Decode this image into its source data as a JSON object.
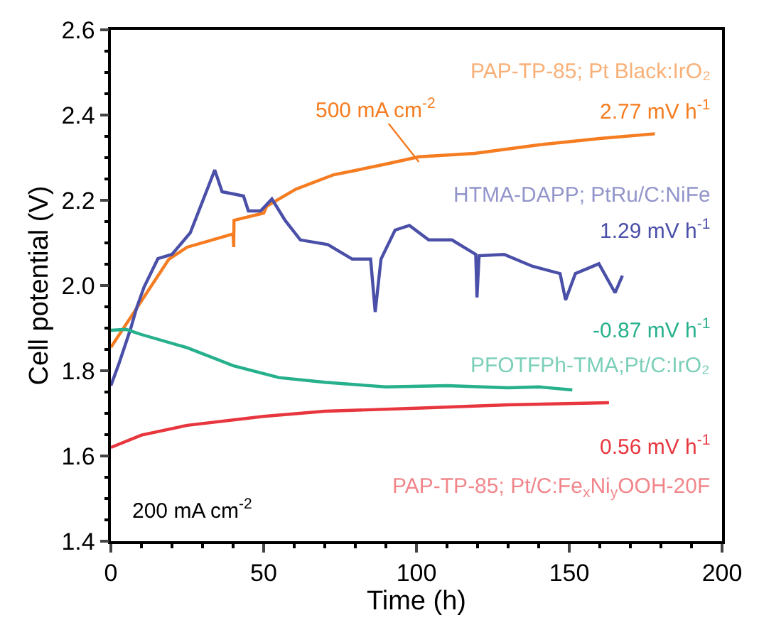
{
  "chart_data": {
    "type": "line",
    "xlabel": "Time (h)",
    "ylabel": "Cell potential (V)",
    "xlim": [
      0,
      200
    ],
    "xticks": [
      0,
      50,
      100,
      150,
      200
    ],
    "ylim": [
      1.4,
      2.6
    ],
    "yticks": [
      1.4,
      1.6,
      1.8,
      {
        "value": 2,
        "label": "2.0"
      },
      2.2,
      2.4,
      2.6
    ],
    "grid": false,
    "legend": false,
    "line_style": "solid",
    "marker": "none",
    "series": [
      {
        "name": "PAP-TP-85; Pt Black:IrO₂",
        "color": "#f57c20",
        "x": [
          0,
          7,
          19,
          25,
          40,
          40.2,
          40.3,
          50,
          51,
          60.5,
          72.9,
          80,
          90,
          100.8,
          119,
          140,
          160,
          178
        ],
        "values": [
          1.855,
          1.931,
          2.062,
          2.09,
          2.121,
          2.09,
          2.153,
          2.17,
          2.186,
          2.226,
          2.26,
          2.27,
          2.285,
          2.302,
          2.31,
          2.33,
          2.345,
          2.356
        ]
      },
      {
        "name": "HTMA-DAPP; PtRu/C:NiFe",
        "color": "#4a4fa8",
        "x": [
          0,
          2.7,
          6.4,
          8.5,
          10.9,
          15.4,
          20,
          26,
          34,
          36.4,
          40,
          43.4,
          45,
          49,
          52.7,
          57,
          62,
          71,
          79,
          85,
          86.5,
          88.4,
          93,
          97.7,
          104,
          111.6,
          119.4,
          119.8,
          120.5,
          128.7,
          138,
          147,
          148.8,
          152,
          159.7,
          165,
          167.4
        ],
        "values": [
          1.765,
          1.818,
          1.897,
          1.949,
          1.997,
          2.063,
          2.073,
          2.124,
          2.271,
          2.22,
          2.215,
          2.21,
          2.175,
          2.175,
          2.203,
          2.153,
          2.107,
          2.096,
          2.062,
          2.062,
          1.938,
          2.062,
          2.13,
          2.141,
          2.107,
          2.107,
          2.073,
          1.972,
          2.07,
          2.073,
          2.045,
          2.028,
          1.966,
          2.028,
          2.051,
          1.983,
          2.023
        ]
      },
      {
        "name": "PFOTFPh-TMA;Pt/C:IrO₂",
        "color": "#26b08c",
        "x": [
          0,
          5,
          10,
          25,
          40,
          55,
          70,
          90,
          110,
          130,
          140,
          151
        ],
        "values": [
          1.895,
          1.897,
          1.885,
          1.854,
          1.812,
          1.784,
          1.773,
          1.762,
          1.765,
          1.76,
          1.762,
          1.755
        ]
      },
      {
        "name": "PAP-TP-85; Pt/C:Fe$_{x}$Ni$_{y}$OOH-20F",
        "color": "#e8363e",
        "x": [
          0,
          10,
          25,
          50,
          70,
          100,
          130,
          163
        ],
        "values": [
          1.62,
          1.649,
          1.672,
          1.693,
          1.705,
          1.712,
          1.72,
          1.725
        ]
      }
    ],
    "annotations": [
      "2.77 mV h$^{-1}$",
      "1.29 mV h$^{-1}$",
      "-0.87 mV h$^{-1}$",
      "0.56 mV h$^{-1}$",
      {
        "text": "500 mA cm$^{-2}$",
        "x": 100.8,
        "y": 2.29
      },
      "200 mA cm$^{-2}$"
    ]
  }
}
